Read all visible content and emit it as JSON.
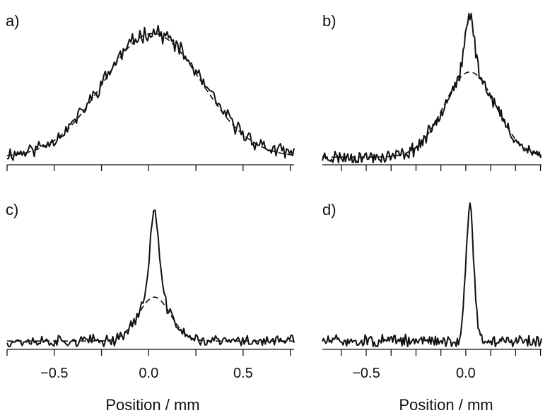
{
  "chart_data": [
    {
      "panel": "a)",
      "type": "line",
      "xlabel": "",
      "xlim": [
        -0.75,
        0.77
      ],
      "ylim": [
        0,
        1.05
      ],
      "xticks": [
        -0.75,
        -0.5,
        -0.25,
        0.0,
        0.25,
        0.5,
        0.75
      ],
      "xtick_labels": [],
      "grid": false,
      "measured": {
        "center": 0.02,
        "baseline": 0.05,
        "broad_amp": 0.9,
        "broad_sigma": 0.26,
        "narrow_amp": 0.0,
        "narrow_sigma": 0.02,
        "noise": 0.045,
        "seed": 11
      },
      "fit": {
        "center": 0.02,
        "baseline": 0.04,
        "broad_amp": 0.9,
        "broad_sigma": 0.26
      }
    },
    {
      "panel": "b)",
      "type": "line",
      "xlabel": "Position / mm",
      "xlim": [
        -0.72,
        0.38
      ],
      "ylim": [
        0,
        1.05
      ],
      "xticks": [
        -0.75,
        -0.625,
        -0.5,
        -0.375,
        -0.25,
        -0.125,
        0.0,
        0.125,
        0.25,
        0.375
      ],
      "xtick_labels": [],
      "grid": false,
      "measured": {
        "center": 0.02,
        "baseline": 0.04,
        "broad_amp": 0.62,
        "broad_sigma": 0.13,
        "narrow_amp": 0.42,
        "narrow_sigma": 0.022,
        "noise": 0.04,
        "seed": 23
      },
      "fit": {
        "center": 0.02,
        "baseline": 0.04,
        "broad_amp": 0.62,
        "broad_sigma": 0.13
      }
    },
    {
      "panel": "c)",
      "type": "line",
      "xlabel": "Position / mm",
      "xlim": [
        -0.75,
        0.77
      ],
      "ylim": [
        0,
        1.05
      ],
      "xticks": [
        -0.75,
        -0.5,
        -0.25,
        0.0,
        0.25,
        0.5,
        0.75
      ],
      "xtick_labels": [
        "−0.5",
        "0.0",
        "0.5"
      ],
      "xtick_label_values": [
        -0.5,
        0.0,
        0.5
      ],
      "grid": false,
      "measured": {
        "center": 0.03,
        "baseline": 0.04,
        "broad_amp": 0.32,
        "broad_sigma": 0.085,
        "narrow_amp": 0.62,
        "narrow_sigma": 0.024,
        "noise": 0.035,
        "seed": 37
      },
      "fit": {
        "center": 0.03,
        "baseline": 0.04,
        "broad_amp": 0.32,
        "broad_sigma": 0.085
      }
    },
    {
      "panel": "d)",
      "type": "line",
      "xlabel": "Position / mm",
      "xlim": [
        -0.72,
        0.38
      ],
      "ylim": [
        0,
        1.05
      ],
      "xticks": [
        -0.75,
        -0.625,
        -0.5,
        -0.375,
        -0.25,
        -0.125,
        0.0,
        0.125,
        0.25,
        0.375
      ],
      "xtick_labels": [
        "−0.5",
        "0.0"
      ],
      "xtick_label_values": [
        -0.5,
        0.0
      ],
      "grid": false,
      "measured": {
        "center": 0.02,
        "baseline": 0.04,
        "broad_amp": 0.0,
        "broad_sigma": 0.05,
        "narrow_amp": 0.97,
        "narrow_sigma": 0.02,
        "noise": 0.035,
        "seed": 51
      },
      "fit": null
    }
  ]
}
